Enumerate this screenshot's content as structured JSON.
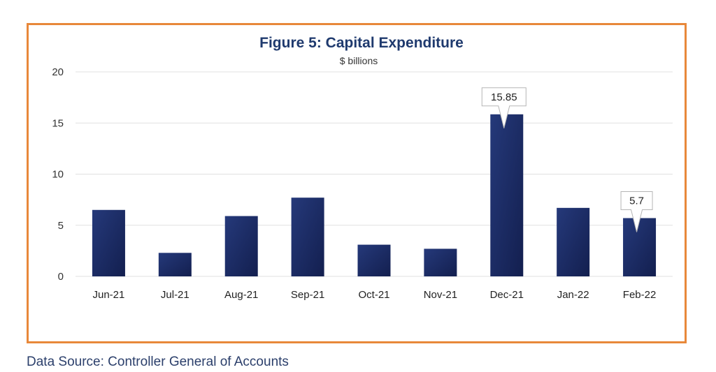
{
  "chart_data": {
    "type": "bar",
    "title": "Figure 5: Capital Expenditure",
    "subtitle": "$ billions",
    "categories": [
      "Jun-21",
      "Jul-21",
      "Aug-21",
      "Sep-21",
      "Oct-21",
      "Nov-21",
      "Dec-21",
      "Jan-22",
      "Feb-22"
    ],
    "values": [
      6.5,
      2.3,
      5.9,
      7.7,
      3.1,
      2.7,
      15.85,
      6.7,
      5.7
    ],
    "ylim": [
      0,
      20
    ],
    "yticks": [
      "0",
      "5",
      "10",
      "15",
      "20"
    ],
    "grid": true,
    "callouts": [
      {
        "category": "Dec-21",
        "label": "15.85"
      },
      {
        "category": "Feb-22",
        "label": "5.7"
      }
    ],
    "bar_color": "#1c2d66",
    "title_color": "#1f3a6e"
  },
  "frame_color": "#e8883a",
  "source": "Data Source: Controller General of Accounts"
}
